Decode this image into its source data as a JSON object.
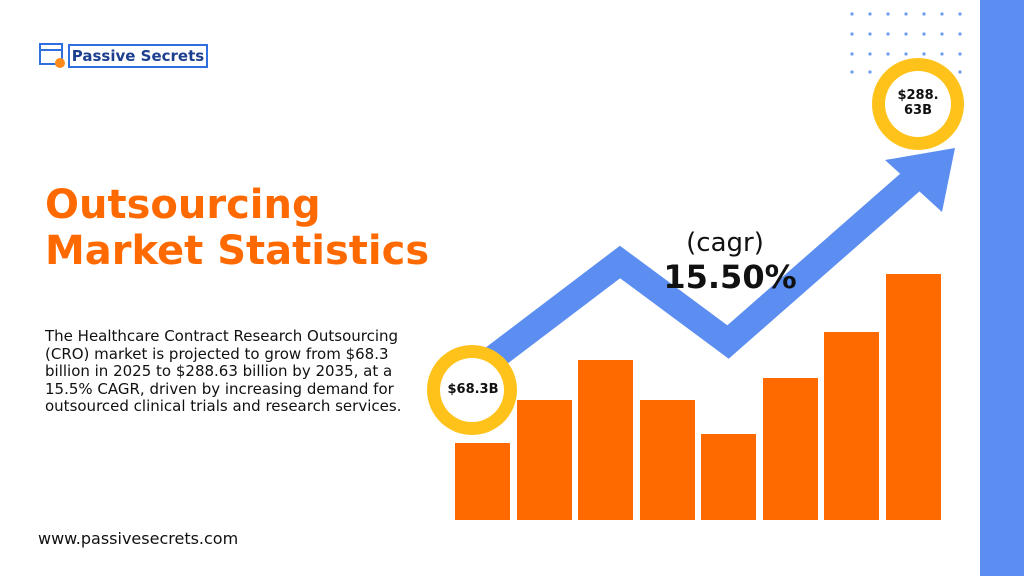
{
  "logo": {
    "text": "Passive Secrets"
  },
  "header": {
    "title": "Outsourcing Market Statistics"
  },
  "description": "The Healthcare Contract Research Outsourcing (CRO) market is projected to grow from $68.3 billion in 2025 to $288.63 billion by 2035, at a 15.5% CAGR, driven by increasing demand for outsourced clinical trials and research services.",
  "footer": {
    "url": "www.passivesecrets.com"
  },
  "graphic": {
    "start_label": "$68.3B",
    "end_label": "$288.63B",
    "cagr_caption": "(cagr)",
    "cagr_value": "15.50%"
  }
}
